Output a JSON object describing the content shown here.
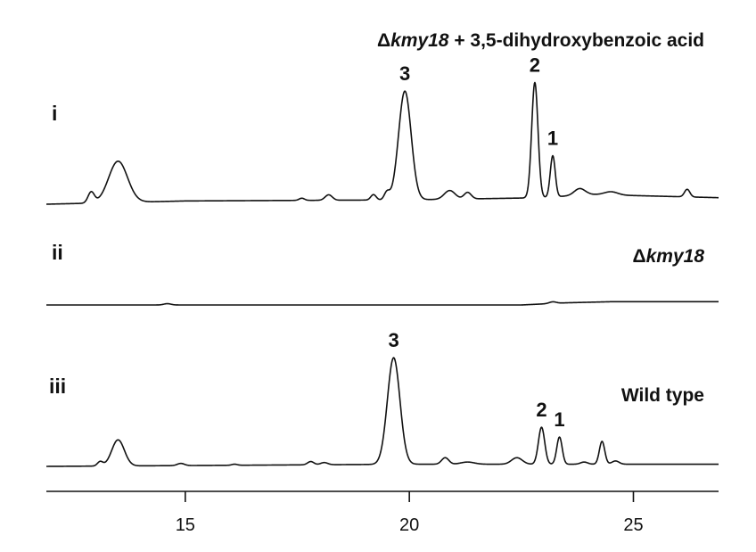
{
  "chart_data": {
    "type": "line",
    "title": "",
    "xlabel": "",
    "ylabel": "",
    "xlim": [
      11.9,
      26.9
    ],
    "x_ticks": [
      15,
      20,
      25
    ],
    "x_tick_labels": [
      "15",
      "20",
      "25"
    ],
    "grid": false,
    "legend": "none",
    "line_color": "#111111",
    "series": [
      {
        "label": "i",
        "condition_prefix": "Δ",
        "condition_italic": "kmy18",
        "condition_suffix": " + 3,5-dihydroxybenzoic acid",
        "baseline": [
          [
            11.9,
            0
          ],
          [
            15,
            0.03
          ],
          [
            20,
            0.04
          ],
          [
            23,
            0.06
          ],
          [
            24,
            0.09
          ],
          [
            26.9,
            0.06
          ]
        ],
        "peaks": [
          {
            "rt": 12.9,
            "height": 0.1,
            "width": 0.07,
            "label": ""
          },
          {
            "rt": 13.5,
            "height": 0.38,
            "width": 0.21,
            "label": ""
          },
          {
            "rt": 17.6,
            "height": 0.02,
            "width": 0.06,
            "label": ""
          },
          {
            "rt": 18.2,
            "height": 0.05,
            "width": 0.08,
            "label": ""
          },
          {
            "rt": 19.2,
            "height": 0.05,
            "width": 0.06,
            "label": ""
          },
          {
            "rt": 19.5,
            "height": 0.07,
            "width": 0.06,
            "label": ""
          },
          {
            "rt": 19.9,
            "height": 1.0,
            "width": 0.14,
            "label": "3"
          },
          {
            "rt": 20.9,
            "height": 0.08,
            "width": 0.12,
            "label": ""
          },
          {
            "rt": 21.3,
            "height": 0.06,
            "width": 0.08,
            "label": ""
          },
          {
            "rt": 22.8,
            "height": 1.06,
            "width": 0.07,
            "label": "2"
          },
          {
            "rt": 23.2,
            "height": 0.38,
            "width": 0.055,
            "label": "1"
          },
          {
            "rt": 23.8,
            "height": 0.06,
            "width": 0.12,
            "label": ""
          },
          {
            "rt": 24.5,
            "height": 0.03,
            "width": 0.15,
            "label": ""
          },
          {
            "rt": 26.2,
            "height": 0.07,
            "width": 0.06,
            "label": ""
          }
        ]
      },
      {
        "label": "ii",
        "condition_prefix": "Δ",
        "condition_italic": "kmy18",
        "condition_suffix": "",
        "baseline": [
          [
            11.9,
            0
          ],
          [
            22.5,
            0.0
          ],
          [
            23.5,
            0.02
          ],
          [
            24.5,
            0.03
          ],
          [
            26.9,
            0.03
          ]
        ],
        "peaks": [
          {
            "rt": 14.6,
            "height": 0.012,
            "width": 0.08,
            "label": ""
          },
          {
            "rt": 23.2,
            "height": 0.015,
            "width": 0.08,
            "label": ""
          }
        ]
      },
      {
        "label": "iii",
        "condition_prefix": "",
        "condition_italic": "",
        "condition_suffix": "Wild type",
        "baseline": [
          [
            11.9,
            0
          ],
          [
            20,
            0.02
          ],
          [
            26.9,
            0.02
          ]
        ],
        "peaks": [
          {
            "rt": 13.1,
            "height": 0.04,
            "width": 0.06,
            "label": ""
          },
          {
            "rt": 13.5,
            "height": 0.24,
            "width": 0.14,
            "label": ""
          },
          {
            "rt": 14.9,
            "height": 0.02,
            "width": 0.08,
            "label": ""
          },
          {
            "rt": 16.1,
            "height": 0.01,
            "width": 0.06,
            "label": ""
          },
          {
            "rt": 17.8,
            "height": 0.03,
            "width": 0.07,
            "label": ""
          },
          {
            "rt": 18.1,
            "height": 0.02,
            "width": 0.08,
            "label": ""
          },
          {
            "rt": 19.65,
            "height": 0.98,
            "width": 0.14,
            "label": "3"
          },
          {
            "rt": 20.8,
            "height": 0.06,
            "width": 0.08,
            "label": ""
          },
          {
            "rt": 21.3,
            "height": 0.02,
            "width": 0.15,
            "label": ""
          },
          {
            "rt": 22.4,
            "height": 0.06,
            "width": 0.12,
            "label": ""
          },
          {
            "rt": 22.95,
            "height": 0.34,
            "width": 0.07,
            "label": "2"
          },
          {
            "rt": 23.35,
            "height": 0.25,
            "width": 0.06,
            "label": "1"
          },
          {
            "rt": 23.9,
            "height": 0.02,
            "width": 0.08,
            "label": ""
          },
          {
            "rt": 24.3,
            "height": 0.21,
            "width": 0.06,
            "label": ""
          },
          {
            "rt": 24.6,
            "height": 0.03,
            "width": 0.08,
            "label": ""
          }
        ]
      }
    ]
  }
}
